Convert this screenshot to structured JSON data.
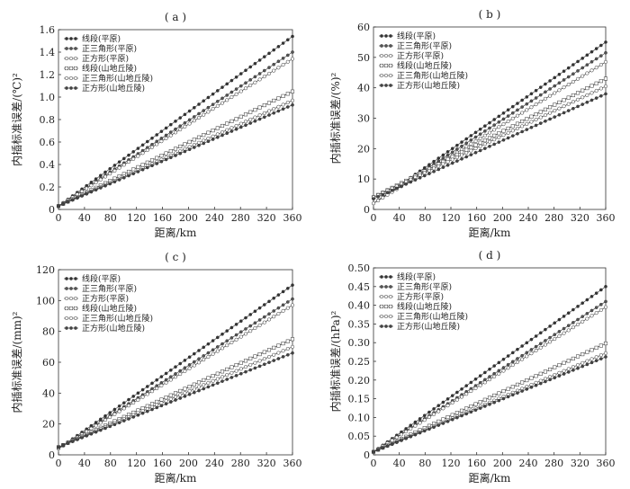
{
  "chart_data": [
    {
      "type": "line",
      "panel_label": "( a )",
      "xlabel": "距离/km",
      "ylabel": "内插标准误差/(℃)²",
      "xlim": [
        0,
        360
      ],
      "ylim": [
        0,
        1.6
      ],
      "xticks": [
        0,
        40,
        80,
        120,
        160,
        200,
        240,
        280,
        320,
        360
      ],
      "yticks": [
        "0",
        "0.2",
        "0.4",
        "0.6",
        "0.8",
        "1.0",
        "1.2",
        "1.4",
        "1.6"
      ],
      "grid": false,
      "legend_position": "top-left",
      "series": [
        {
          "name": "线段(平原)",
          "values": [
            0.03,
            1.54
          ]
        },
        {
          "name": "正三角形(平原)",
          "values": [
            0.03,
            1.4
          ]
        },
        {
          "name": "正方形(平原)",
          "values": [
            0.03,
            1.34
          ]
        },
        {
          "name": "线段(山地丘陵)",
          "values": [
            0.03,
            1.05
          ]
        },
        {
          "name": "正三角形(山地丘陵)",
          "values": [
            0.03,
            0.97
          ]
        },
        {
          "name": "正方形(山地丘陵)",
          "values": [
            0.03,
            0.93
          ]
        }
      ]
    },
    {
      "type": "line",
      "panel_label": "( b )",
      "xlabel": "距离/km",
      "ylabel": "内插标准误差/(%)²",
      "xlim": [
        0,
        360
      ],
      "ylim": [
        0,
        60
      ],
      "xticks": [
        0,
        40,
        80,
        120,
        160,
        200,
        240,
        280,
        320,
        360
      ],
      "yticks": [
        "0",
        "10",
        "20",
        "30",
        "40",
        "50",
        "60"
      ],
      "grid": false,
      "legend_position": "top-left",
      "series": [
        {
          "name": "线段(平原)",
          "values": [
            2,
            55
          ]
        },
        {
          "name": "正三角形(平原)",
          "values": [
            2,
            51.5
          ]
        },
        {
          "name": "正方形(平原)",
          "values": [
            2,
            48.5
          ]
        },
        {
          "name": "线段(山地丘陵)",
          "values": [
            4,
            43
          ]
        },
        {
          "name": "正三角形(山地丘陵)",
          "values": [
            4,
            40.5
          ]
        },
        {
          "name": "正方形(山地丘陵)",
          "values": [
            3.5,
            38
          ]
        }
      ]
    },
    {
      "type": "line",
      "panel_label": "( c )",
      "xlabel": "距离/km",
      "ylabel": "内插标准误差/(mm)²",
      "xlim": [
        0,
        360
      ],
      "ylim": [
        0,
        120
      ],
      "xticks": [
        0,
        40,
        80,
        120,
        160,
        200,
        240,
        280,
        320,
        360
      ],
      "yticks": [
        "0",
        "20",
        "40",
        "60",
        "80",
        "100",
        "120"
      ],
      "grid": false,
      "legend_position": "top-left",
      "series": [
        {
          "name": "线段(平原)",
          "values": [
            4,
            110
          ]
        },
        {
          "name": "正三角形(平原)",
          "values": [
            4,
            101
          ]
        },
        {
          "name": "正方形(平原)",
          "values": [
            4,
            97
          ]
        },
        {
          "name": "线段(山地丘陵)",
          "values": [
            5,
            75
          ]
        },
        {
          "name": "正三角形(山地丘陵)",
          "values": [
            5,
            70
          ]
        },
        {
          "name": "正方形(山地丘陵)",
          "values": [
            5,
            66
          ]
        }
      ]
    },
    {
      "type": "line",
      "panel_label": "( d )",
      "xlabel": "距离/km",
      "ylabel": "内插标准误差/(hPa)²",
      "xlim": [
        0,
        360
      ],
      "ylim": [
        0,
        0.5
      ],
      "xticks": [
        0,
        40,
        80,
        120,
        160,
        200,
        240,
        280,
        320,
        360
      ],
      "yticks": [
        "0",
        "0.05",
        "0.10",
        "0.15",
        "0.20",
        "0.25",
        "0.30",
        "0.35",
        "0.40",
        "0.45",
        "0.50"
      ],
      "grid": false,
      "legend_position": "top-left",
      "series": [
        {
          "name": "线段(平原)",
          "values": [
            0.008,
            0.45
          ]
        },
        {
          "name": "正三角形(平原)",
          "values": [
            0.008,
            0.41
          ]
        },
        {
          "name": "正方形(平原)",
          "values": [
            0.008,
            0.395
          ]
        },
        {
          "name": "线段(山地丘陵)",
          "values": [
            0.008,
            0.298
          ]
        },
        {
          "name": "正三角形(山地丘陵)",
          "values": [
            0.008,
            0.272
          ]
        },
        {
          "name": "正方形(山地丘陵)",
          "values": [
            0.008,
            0.262
          ]
        }
      ]
    }
  ]
}
